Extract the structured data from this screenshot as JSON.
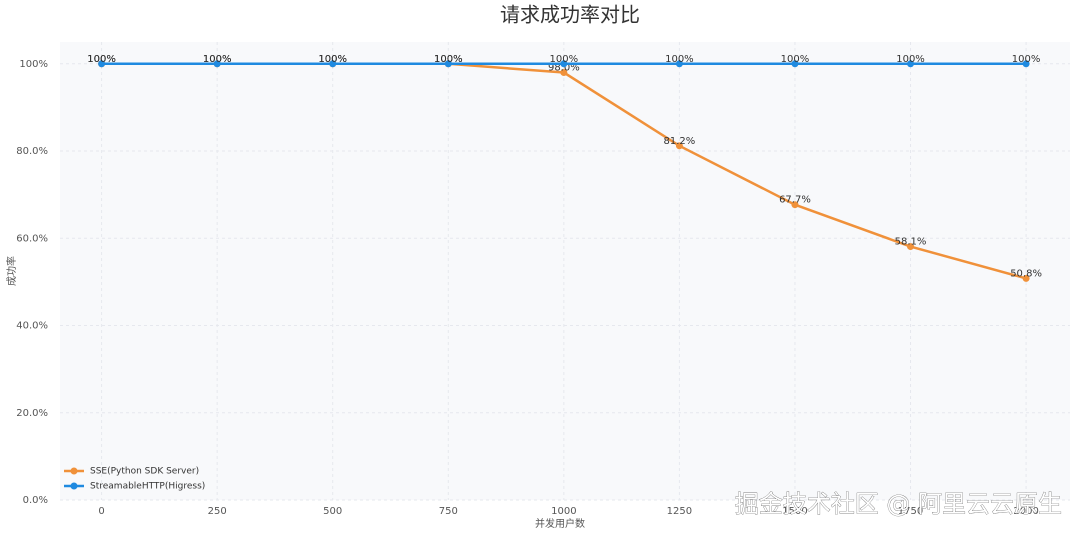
{
  "chart_data": {
    "type": "line",
    "title": "请求成功率对比",
    "xlabel": "并发用户数",
    "ylabel": "成功率",
    "x": [
      0,
      250,
      500,
      750,
      1000,
      1250,
      1500,
      1750,
      2000
    ],
    "xlim": [
      -90,
      2095
    ],
    "xticks": [
      0,
      250,
      500,
      750,
      1000,
      1250,
      1500,
      1750,
      2000
    ],
    "ylim": [
      0,
      105
    ],
    "yticks": [
      {
        "value": 0,
        "label": "0.0%"
      },
      {
        "value": 20,
        "label": "20.0%"
      },
      {
        "value": 40,
        "label": "40.0%"
      },
      {
        "value": 60,
        "label": "60.0%"
      },
      {
        "value": 80,
        "label": "80.0%"
      },
      {
        "value": 100,
        "label": "100%"
      }
    ],
    "grid": true,
    "legend": "lower left",
    "series": [
      {
        "name": "SSE(Python SDK Server)",
        "color": "#f0913a",
        "values": [
          100,
          100,
          100,
          100,
          98.0,
          81.2,
          67.7,
          58.1,
          50.8
        ],
        "value_labels": [
          "100%",
          "100%",
          "100%",
          "100%",
          "98.0%",
          "81.2%",
          "67.7%",
          "58.1%",
          "50.8%"
        ]
      },
      {
        "name": "StreamableHTTP(Higress)",
        "color": "#1f8ae0",
        "values": [
          100,
          100,
          100,
          100,
          100,
          100,
          100,
          100,
          100
        ],
        "value_labels": [
          "100%",
          "100%",
          "100%",
          "100%",
          "100%",
          "100%",
          "100%",
          "100%",
          "100%"
        ]
      }
    ],
    "watermark": "掘金技术社区 @ 阿里云云原生"
  }
}
